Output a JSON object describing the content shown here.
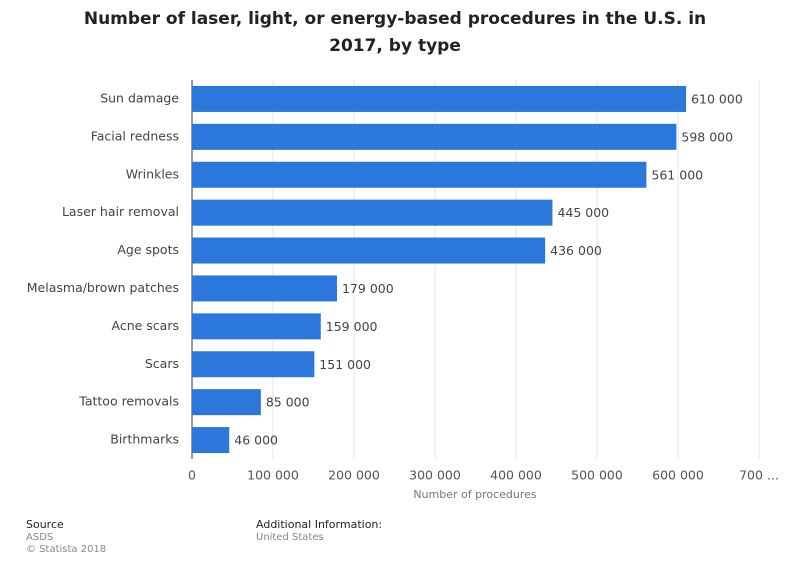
{
  "chart_data": {
    "type": "hbar",
    "title": "Number of laser, light, or energy-based procedures in the U.S. in 2017, by type",
    "x_label": "Number of procedures",
    "categories": [
      "Sun damage",
      "Facial redness",
      "Wrinkles",
      "Laser hair removal",
      "Age spots",
      "Melasma/brown patches",
      "Acne scars",
      "Scars",
      "Tattoo removals",
      "Birthmarks"
    ],
    "values": [
      610000,
      598000,
      561000,
      445000,
      436000,
      179000,
      159000,
      151000,
      85000,
      46000
    ],
    "value_labels": [
      "610 000",
      "598 000",
      "561 000",
      "445 000",
      "436 000",
      "179 000",
      "159 000",
      "151 000",
      "85 000",
      "46 000"
    ],
    "color": "#2b77dc",
    "xlim": [
      0,
      700000
    ],
    "xticks": [
      0,
      {
        "value": 100000,
        "label": "100 000"
      },
      {
        "value": 200000,
        "label": "200 000"
      },
      {
        "value": 300000,
        "label": "300 000"
      },
      {
        "value": 400000,
        "label": "400 000"
      },
      {
        "value": 500000,
        "label": "500 000"
      },
      {
        "value": 600000,
        "label": "600 000"
      },
      {
        "value": 700000,
        "label": "700 ..."
      }
    ],
    "grid": true
  },
  "footer": {
    "source_label": "Source",
    "source": "ASDS",
    "copyright": "© Statista 2018",
    "info_label": "Additional Information:",
    "info": "United States"
  }
}
